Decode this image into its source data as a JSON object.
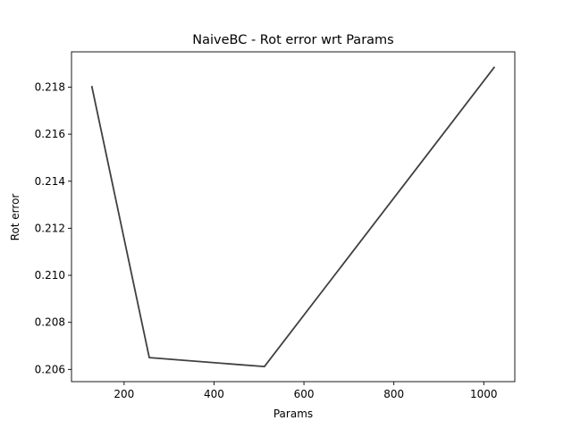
{
  "chart_data": {
    "type": "line",
    "title": "NaiveBC - Rot error wrt Params",
    "xlabel": "Params",
    "ylabel": "Rot error",
    "series": [
      {
        "x": [
          128,
          256,
          512,
          1024
        ],
        "values": [
          0.21805,
          0.2065,
          0.20612,
          0.21886
        ],
        "color": "#404040"
      }
    ],
    "xlim": [
      83,
      1069
    ],
    "ylim": [
      0.20548,
      0.2195
    ],
    "xticks": [
      200,
      400,
      600,
      800,
      1000
    ],
    "xtick_labels": [
      "200",
      "400",
      "600",
      "800",
      "1000"
    ],
    "yticks": [
      0.206,
      0.208,
      0.21,
      0.212,
      0.214,
      0.216,
      0.218
    ],
    "ytick_labels": [
      "0.206",
      "0.208",
      "0.210",
      "0.212",
      "0.214",
      "0.216",
      "0.218"
    ],
    "grid": false,
    "legend": "none"
  }
}
